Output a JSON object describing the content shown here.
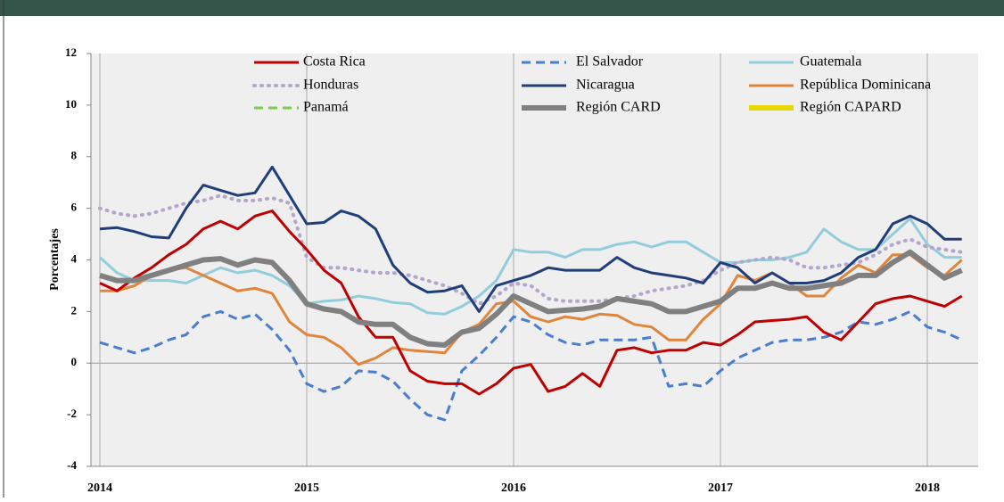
{
  "chart_data": {
    "type": "line",
    "ylabel": "Porcentajes",
    "categories": [
      "2014",
      null,
      null,
      null,
      null,
      null,
      null,
      null,
      null,
      null,
      null,
      null,
      "2015",
      null,
      null,
      null,
      null,
      null,
      null,
      null,
      null,
      null,
      null,
      null,
      "2016",
      null,
      null,
      null,
      null,
      null,
      null,
      null,
      null,
      null,
      null,
      null,
      "2017",
      null,
      null,
      null,
      null,
      null,
      null,
      null,
      null,
      null,
      null,
      null,
      "2018",
      null,
      null
    ],
    "ylim": [
      -4,
      12
    ],
    "yticks": [
      -4,
      -2,
      0,
      2,
      4,
      6,
      8,
      10,
      12
    ],
    "legend": "top",
    "series": [
      {
        "name": "Costa Rica",
        "color": "#c00000",
        "style": "solid",
        "values": [
          3.1,
          2.8,
          3.3,
          3.7,
          4.2,
          4.6,
          5.2,
          5.5,
          5.2,
          5.7,
          5.9,
          5.1,
          4.4,
          3.6,
          3.1,
          1.8,
          1.0,
          1.0,
          -0.3,
          -0.7,
          -0.8,
          -0.8,
          -1.2,
          -0.8,
          -0.2,
          -0.05,
          -1.1,
          -0.9,
          -0.4,
          -0.9,
          0.5,
          0.6,
          0.4,
          0.5,
          0.5,
          0.8,
          0.7,
          1.1,
          1.6,
          1.65,
          1.7,
          1.8,
          1.2,
          0.9,
          1.6,
          2.3,
          2.5,
          2.6,
          2.4,
          2.2,
          2.6
        ]
      },
      {
        "name": "El Salvador",
        "color": "#4a7cd0",
        "style": "dashed",
        "values": [
          0.8,
          0.6,
          0.4,
          0.6,
          0.9,
          1.1,
          1.8,
          2.0,
          1.7,
          1.9,
          1.3,
          0.5,
          -0.8,
          -1.1,
          -0.9,
          -0.3,
          -0.35,
          -0.7,
          -1.4,
          -2.0,
          -2.2,
          -0.3,
          0.3,
          1.0,
          1.8,
          1.6,
          1.1,
          0.8,
          0.7,
          0.9,
          0.9,
          0.9,
          1.0,
          -0.9,
          -0.8,
          -0.9,
          -0.3,
          0.2,
          0.5,
          0.8,
          0.9,
          0.9,
          1.0,
          1.2,
          1.6,
          1.5,
          1.7,
          2.0,
          1.4,
          1.2,
          0.9
        ]
      },
      {
        "name": "Guatemala",
        "color": "#92cddc",
        "style": "solid",
        "values": [
          4.1,
          3.5,
          3.2,
          3.2,
          3.2,
          3.1,
          3.4,
          3.7,
          3.5,
          3.6,
          3.4,
          3.0,
          2.3,
          2.4,
          2.45,
          2.6,
          2.5,
          2.35,
          2.3,
          1.95,
          1.9,
          2.2,
          2.6,
          3.2,
          4.4,
          4.3,
          4.3,
          4.1,
          4.4,
          4.4,
          4.6,
          4.7,
          4.5,
          4.7,
          4.7,
          4.3,
          3.9,
          3.9,
          4.0,
          4.0,
          4.1,
          4.3,
          5.2,
          4.7,
          4.4,
          4.4,
          5.0,
          5.6,
          4.6,
          4.1,
          4.1
        ]
      },
      {
        "name": "Honduras",
        "color": "#b4a5cc",
        "style": "dotted",
        "values": [
          6.0,
          5.8,
          5.7,
          5.8,
          6.0,
          6.2,
          6.3,
          6.5,
          6.3,
          6.3,
          6.4,
          6.2,
          4.1,
          3.7,
          3.7,
          3.6,
          3.5,
          3.5,
          3.4,
          3.2,
          3.0,
          2.7,
          2.3,
          2.6,
          3.1,
          3.0,
          2.5,
          2.4,
          2.4,
          2.4,
          2.5,
          2.6,
          2.8,
          2.9,
          3.0,
          3.2,
          3.6,
          3.9,
          4.0,
          4.1,
          4.0,
          3.7,
          3.7,
          3.8,
          3.9,
          4.2,
          4.6,
          4.8,
          4.5,
          4.4,
          4.3
        ]
      },
      {
        "name": "Nicaragua",
        "color": "#1f3e7a",
        "style": "solid",
        "values": [
          5.2,
          5.25,
          5.1,
          4.9,
          4.85,
          6.0,
          6.9,
          6.7,
          6.5,
          6.6,
          7.6,
          6.5,
          5.4,
          5.45,
          5.9,
          5.7,
          5.2,
          3.8,
          3.1,
          2.75,
          2.8,
          3.0,
          2.0,
          3.0,
          3.2,
          3.4,
          3.7,
          3.6,
          3.6,
          3.6,
          4.1,
          3.7,
          3.5,
          3.4,
          3.3,
          3.1,
          3.9,
          3.7,
          3.1,
          3.5,
          3.1,
          3.1,
          3.2,
          3.5,
          4.1,
          4.4,
          5.4,
          5.7,
          5.4,
          4.8,
          4.8
        ]
      },
      {
        "name": "República Dominicana",
        "color": "#e0853a",
        "style": "solid",
        "values": [
          2.8,
          2.8,
          3.0,
          3.4,
          3.6,
          3.7,
          3.4,
          3.1,
          2.8,
          2.9,
          2.7,
          1.6,
          1.1,
          1.0,
          0.6,
          -0.05,
          0.2,
          0.6,
          0.5,
          0.45,
          0.4,
          1.2,
          1.5,
          2.3,
          2.4,
          1.8,
          1.6,
          1.8,
          1.7,
          1.9,
          1.85,
          1.5,
          1.4,
          0.9,
          0.9,
          1.7,
          2.3,
          3.4,
          3.2,
          3.5,
          3.1,
          2.6,
          2.6,
          3.3,
          3.8,
          3.5,
          4.2,
          4.2,
          3.7,
          3.4,
          4.0
        ]
      },
      {
        "name": "Panamá",
        "color": "#7ec850",
        "style": "dashed",
        "values": [
          null,
          null,
          null,
          null,
          null,
          null,
          null,
          null,
          null,
          null,
          null,
          null,
          null,
          null,
          null,
          null,
          null,
          null,
          null,
          null,
          null,
          null,
          null,
          null,
          null,
          null,
          null,
          null,
          null,
          null,
          null,
          null,
          null,
          null,
          null,
          null,
          null,
          null,
          null,
          null,
          null,
          null,
          null,
          null,
          null,
          null,
          null,
          null,
          null,
          null,
          null
        ]
      },
      {
        "name": "Región CARD",
        "color": "#808080",
        "style": "thick",
        "values": [
          3.4,
          3.2,
          3.2,
          3.4,
          3.6,
          3.8,
          4.0,
          4.05,
          3.8,
          4.0,
          3.9,
          3.2,
          2.3,
          2.1,
          2.0,
          1.6,
          1.5,
          1.5,
          1.0,
          0.75,
          0.7,
          1.2,
          1.35,
          1.9,
          2.6,
          2.3,
          2.0,
          2.05,
          2.1,
          2.2,
          2.5,
          2.4,
          2.3,
          2.0,
          2.0,
          2.2,
          2.4,
          2.9,
          2.9,
          3.1,
          2.9,
          2.9,
          3.0,
          3.1,
          3.4,
          3.4,
          3.9,
          4.3,
          3.8,
          3.3,
          3.6
        ]
      },
      {
        "name": "Región CAPARD",
        "color": "#e6d800",
        "style": "thick",
        "values": [
          null,
          null,
          null,
          null,
          null,
          null,
          null,
          null,
          null,
          null,
          null,
          null,
          null,
          null,
          null,
          null,
          null,
          null,
          null,
          null,
          null,
          null,
          null,
          null,
          null,
          null,
          null,
          null,
          null,
          null,
          null,
          null,
          null,
          null,
          null,
          null,
          null,
          null,
          null,
          null,
          null,
          null,
          null,
          null,
          null,
          null,
          null,
          null,
          null,
          null,
          null
        ]
      }
    ]
  }
}
